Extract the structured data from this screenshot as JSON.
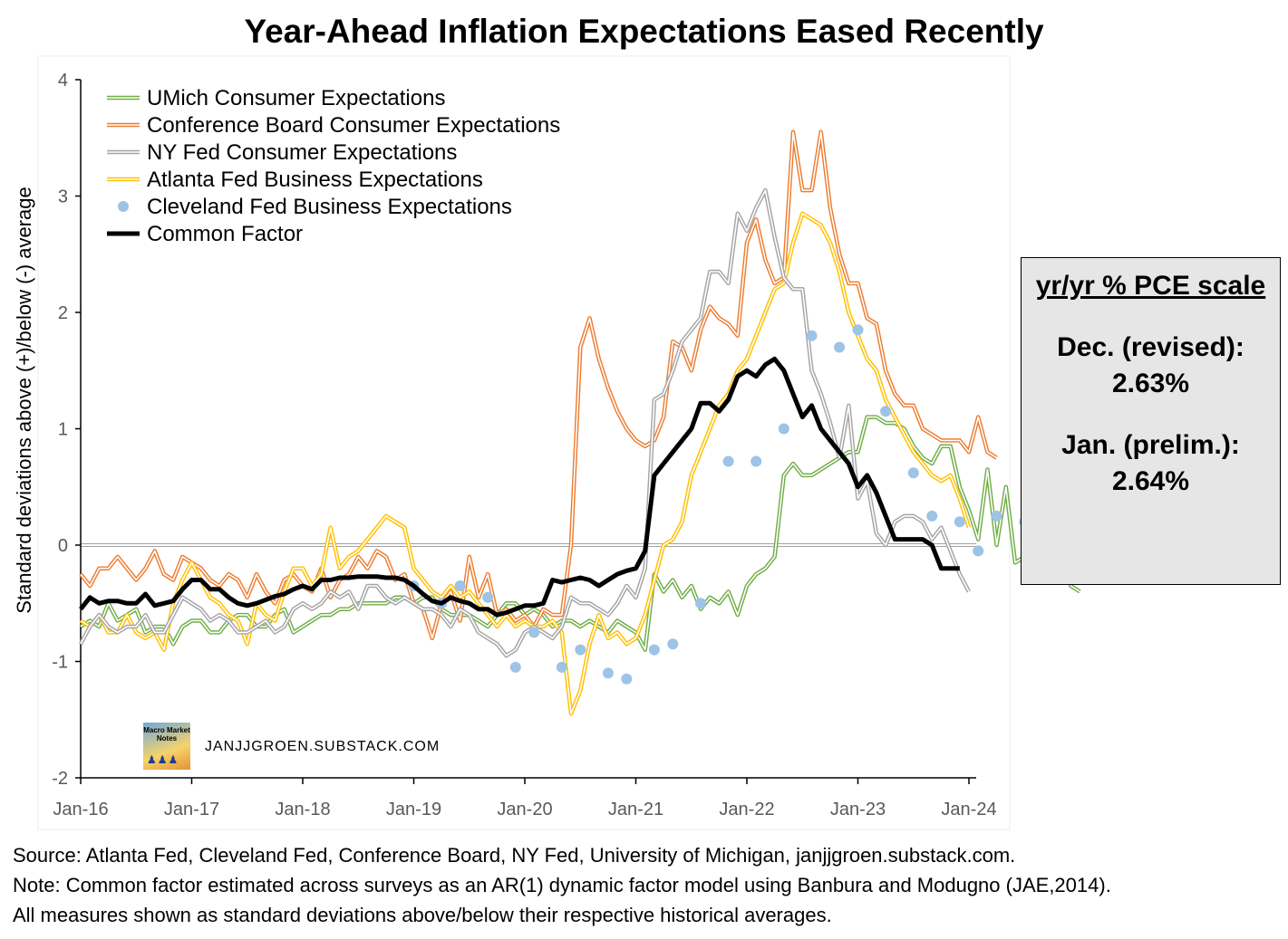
{
  "title": "Year-Ahead Inflation Expectations Eased Recently",
  "pce_box": {
    "heading": "yr/yr % PCE scale",
    "dec_label": "Dec. (revised):",
    "dec_value": "2.63%",
    "jan_label": "Jan. (prelim.):",
    "jan_value": "2.64%"
  },
  "watermark": {
    "logo_text": "Macro Market Notes",
    "text": "JANJJGROEN.SUBSTACK.COM"
  },
  "notes": {
    "source": "Source: Atlanta Fed, Cleveland Fed, Conference Board, NY Fed, University of Michigan, janjjgroen.substack.com.",
    "note1": "Note: Common factor estimated  across surveys as an AR(1) dynamic factor model using Banbura and Modugno (JAE,2014).",
    "note2": "All measures shown as standard deviations above/below their respective historical averages."
  },
  "chart_data": {
    "type": "line",
    "title": "Year-Ahead Inflation Expectations Eased Recently",
    "ylabel": "Standard deviations above (+)/below (-) average",
    "xlabel": "",
    "ylim": [
      -2,
      4
    ],
    "y_ticks": [
      "-2",
      "-1",
      "0",
      "1",
      "2",
      "3",
      "4"
    ],
    "x_ticks": [
      "Jan-16",
      "Jan-17",
      "Jan-18",
      "Jan-19",
      "Jan-20",
      "Jan-21",
      "Jan-22",
      "Jan-23",
      "Jan-24"
    ],
    "x_start": "2016-01",
    "x_end": "2024-01",
    "reference_line": 0,
    "legend_position": "top-left",
    "colors": {
      "umich": "#70ad47",
      "conference_board": "#ed7d31",
      "ny_fed": "#a5a5a5",
      "atlanta_fed": "#ffc000",
      "cleveland_fed": "#9dc3e6",
      "common_factor": "#000000"
    },
    "series": [
      {
        "name": "UMich Consumer Expectations",
        "key": "umich",
        "style": "double-line",
        "values": [
          -0.7,
          -0.65,
          -0.7,
          -0.5,
          -0.65,
          -0.6,
          -0.55,
          -0.75,
          -0.7,
          -0.7,
          -0.85,
          -0.7,
          -0.65,
          -0.65,
          -0.75,
          -0.75,
          -0.65,
          -0.6,
          -0.6,
          -0.7,
          -0.7,
          -0.6,
          -0.55,
          -0.75,
          -0.7,
          -0.65,
          -0.6,
          -0.6,
          -0.55,
          -0.55,
          -0.5,
          -0.5,
          -0.5,
          -0.5,
          -0.45,
          -0.45,
          -0.5,
          -0.45,
          -0.45,
          -0.55,
          -0.6,
          -0.6,
          -0.6,
          -0.65,
          -0.7,
          -0.6,
          -0.5,
          -0.5,
          -0.6,
          -0.55,
          -0.6,
          -0.7,
          -0.65,
          -0.65,
          -0.7,
          -0.65,
          -0.7,
          -0.75,
          -0.65,
          -0.7,
          -0.75,
          -0.9,
          -0.25,
          -0.4,
          -0.3,
          -0.45,
          -0.35,
          -0.55,
          -0.45,
          -0.5,
          -0.4,
          -0.6,
          -0.35,
          -0.25,
          -0.2,
          -0.1,
          0.6,
          0.7,
          0.6,
          0.6,
          0.65,
          0.7,
          0.75,
          0.8,
          0.8,
          1.1,
          1.1,
          1.05,
          1.05,
          1.0,
          0.85,
          0.75,
          0.7,
          0.85,
          0.85,
          0.5,
          0.3,
          0.05,
          0.65,
          0.0,
          0.5,
          -0.15,
          -0.1,
          -0.05,
          -0.2,
          0.4,
          0.55,
          -0.35,
          -0.4
        ]
      },
      {
        "name": "Conference Board Consumer Expectations",
        "key": "conference_board",
        "style": "double-line",
        "values": [
          -0.25,
          -0.35,
          -0.2,
          -0.2,
          -0.1,
          -0.2,
          -0.3,
          -0.2,
          -0.05,
          -0.25,
          -0.3,
          -0.1,
          -0.15,
          -0.2,
          -0.3,
          -0.35,
          -0.25,
          -0.3,
          -0.45,
          -0.25,
          -0.4,
          -0.5,
          -0.3,
          -0.25,
          -0.35,
          -0.4,
          -0.2,
          -0.45,
          -0.3,
          -0.25,
          -0.1,
          -0.2,
          -0.05,
          -0.1,
          -0.3,
          -0.25,
          -0.5,
          -0.55,
          -0.8,
          -0.5,
          -0.4,
          -0.65,
          -0.1,
          -0.45,
          -0.25,
          -0.6,
          -0.55,
          -0.65,
          -0.6,
          -0.7,
          -0.55,
          -0.6,
          -0.6,
          0.0,
          1.7,
          1.95,
          1.6,
          1.35,
          1.15,
          1.0,
          0.9,
          0.85,
          0.9,
          1.1,
          1.75,
          1.7,
          1.5,
          1.85,
          2.05,
          1.95,
          1.9,
          1.8,
          2.6,
          2.8,
          2.45,
          2.25,
          2.3,
          3.55,
          3.05,
          3.05,
          3.55,
          2.9,
          2.5,
          2.25,
          2.25,
          1.95,
          1.9,
          1.5,
          1.3,
          1.2,
          1.2,
          1.0,
          0.95,
          0.9,
          0.9,
          0.9,
          0.8,
          1.1,
          0.8,
          0.75
        ]
      },
      {
        "name": "NY Fed Consumer Expectations",
        "key": "ny_fed",
        "style": "double-line",
        "values": [
          -0.85,
          -0.7,
          -0.6,
          -0.7,
          -0.75,
          -0.7,
          -0.7,
          -0.6,
          -0.75,
          -0.75,
          -0.6,
          -0.45,
          -0.5,
          -0.55,
          -0.65,
          -0.6,
          -0.65,
          -0.75,
          -0.75,
          -0.7,
          -0.65,
          -0.75,
          -0.7,
          -0.55,
          -0.5,
          -0.55,
          -0.5,
          -0.4,
          -0.45,
          -0.4,
          -0.55,
          -0.35,
          -0.35,
          -0.45,
          -0.5,
          -0.45,
          -0.5,
          -0.55,
          -0.55,
          -0.6,
          -0.7,
          -0.55,
          -0.6,
          -0.75,
          -0.8,
          -0.85,
          -0.95,
          -0.9,
          -0.75,
          -0.7,
          -0.75,
          -0.8,
          -0.7,
          -0.45,
          -0.5,
          -0.5,
          -0.55,
          -0.6,
          -0.5,
          -0.35,
          -0.45,
          -0.2,
          1.25,
          1.3,
          1.5,
          1.75,
          1.85,
          1.95,
          2.35,
          2.35,
          2.25,
          2.85,
          2.7,
          2.9,
          3.05,
          2.65,
          2.3,
          2.2,
          2.2,
          1.5,
          1.3,
          1.05,
          0.75,
          1.2,
          0.4,
          0.55,
          0.1,
          0.0,
          0.2,
          0.25,
          0.25,
          0.2,
          0.05,
          0.15,
          -0.05,
          -0.25,
          -0.4
        ]
      },
      {
        "name": "Atlanta Fed Business Expectations",
        "key": "atlanta_fed",
        "style": "double-line",
        "values": [
          -0.65,
          -0.7,
          -0.6,
          -0.75,
          -0.75,
          -0.6,
          -0.75,
          -0.8,
          -0.75,
          -0.9,
          -0.5,
          -0.3,
          -0.15,
          -0.3,
          -0.45,
          -0.5,
          -0.6,
          -0.65,
          -0.85,
          -0.5,
          -0.6,
          -0.65,
          -0.4,
          -0.2,
          -0.2,
          -0.35,
          -0.25,
          0.15,
          -0.2,
          -0.1,
          -0.05,
          0.05,
          0.15,
          0.25,
          0.2,
          0.15,
          -0.2,
          -0.3,
          -0.4,
          -0.45,
          -0.35,
          -0.45,
          -0.4,
          -0.5,
          -0.6,
          -0.7,
          -0.6,
          -0.7,
          -0.65,
          -0.7,
          -0.7,
          -0.65,
          -0.75,
          -1.45,
          -1.25,
          -0.85,
          -0.6,
          -0.8,
          -0.75,
          -0.85,
          -0.8,
          -0.6,
          -0.3,
          0.0,
          0.05,
          0.2,
          0.6,
          0.8,
          1.0,
          1.2,
          1.3,
          1.5,
          1.6,
          1.8,
          2.0,
          2.2,
          2.25,
          2.6,
          2.85,
          2.8,
          2.75,
          2.6,
          2.35,
          2.0,
          1.8,
          1.6,
          1.5,
          1.25,
          1.1,
          0.95,
          0.8,
          0.7,
          0.6,
          0.55,
          0.6,
          0.4,
          0.15
        ]
      },
      {
        "name": "Cleveland Fed Business Expectations",
        "key": "cleveland_fed",
        "style": "dots",
        "x_months": [
          36,
          39,
          41,
          44,
          47,
          49,
          52,
          54,
          57,
          59,
          62,
          64,
          67,
          70,
          73,
          76,
          79,
          82,
          84,
          87,
          90,
          92,
          95,
          97,
          99,
          102,
          104,
          107
        ],
        "values": [
          -0.35,
          -0.5,
          -0.35,
          -0.45,
          -1.05,
          -0.75,
          -1.05,
          -0.9,
          -1.1,
          -1.15,
          -0.9,
          -0.85,
          -0.5,
          0.72,
          0.72,
          1.0,
          1.8,
          1.7,
          1.85,
          1.15,
          0.62,
          0.25,
          0.2,
          -0.05,
          0.25,
          0.2,
          -0.1,
          -0.3
        ]
      },
      {
        "name": "Common Factor",
        "key": "common_factor",
        "style": "thick-line",
        "values": [
          -0.55,
          -0.45,
          -0.5,
          -0.48,
          -0.48,
          -0.5,
          -0.5,
          -0.42,
          -0.52,
          -0.5,
          -0.48,
          -0.38,
          -0.3,
          -0.3,
          -0.38,
          -0.38,
          -0.45,
          -0.5,
          -0.52,
          -0.5,
          -0.47,
          -0.44,
          -0.42,
          -0.38,
          -0.35,
          -0.38,
          -0.3,
          -0.3,
          -0.28,
          -0.28,
          -0.27,
          -0.27,
          -0.27,
          -0.28,
          -0.28,
          -0.3,
          -0.35,
          -0.42,
          -0.48,
          -0.5,
          -0.45,
          -0.48,
          -0.5,
          -0.55,
          -0.55,
          -0.6,
          -0.58,
          -0.55,
          -0.52,
          -0.52,
          -0.5,
          -0.3,
          -0.32,
          -0.3,
          -0.28,
          -0.3,
          -0.35,
          -0.3,
          -0.25,
          -0.22,
          -0.2,
          -0.05,
          0.6,
          0.7,
          0.8,
          0.9,
          1.0,
          1.22,
          1.22,
          1.15,
          1.25,
          1.45,
          1.5,
          1.45,
          1.55,
          1.6,
          1.5,
          1.3,
          1.1,
          1.2,
          1.0,
          0.9,
          0.8,
          0.7,
          0.5,
          0.6,
          0.45,
          0.25,
          0.05,
          0.05,
          0.05,
          0.05,
          0.0,
          -0.2,
          -0.2,
          -0.2
        ]
      }
    ]
  }
}
